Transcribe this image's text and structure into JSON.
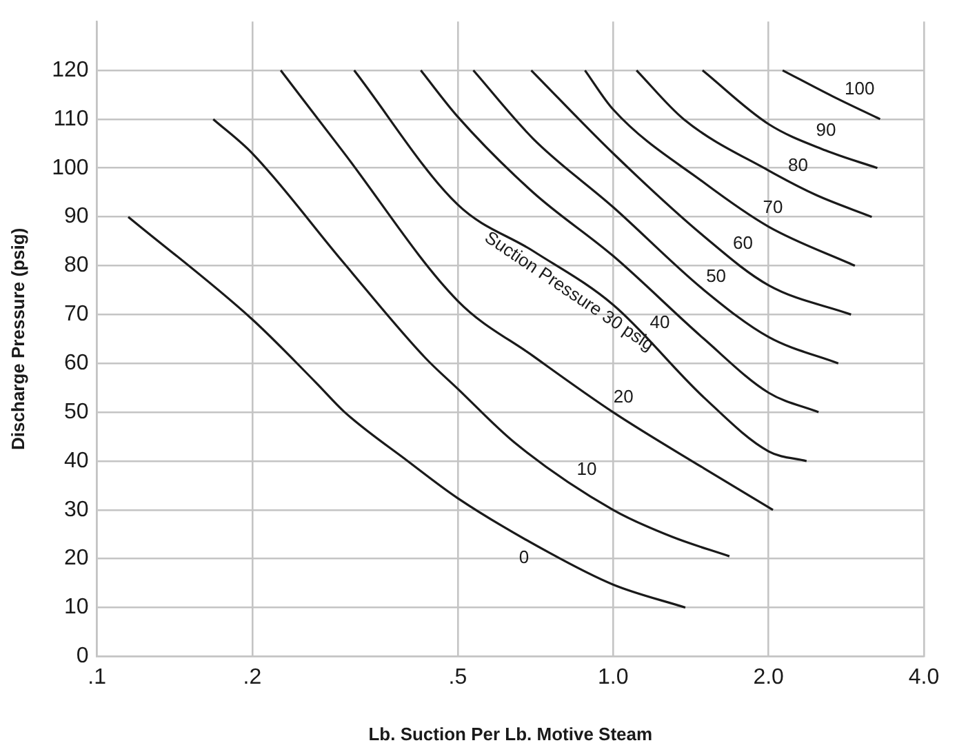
{
  "chart_data": {
    "type": "line",
    "xlabel": "Lb. Suction Per Lb. Motive Steam",
    "ylabel": "Discharge Pressure (psig)",
    "log": "x",
    "xlim": [
      0.1,
      4
    ],
    "xticks": [
      {
        "value": 0.1,
        "label": ".1"
      },
      {
        "value": 0.2,
        "label": ".2"
      },
      {
        "value": 0.5,
        "label": ".5"
      },
      {
        "value": 1,
        "label": "1.0"
      },
      {
        "value": 2,
        "label": "2.0"
      },
      {
        "value": 4,
        "label": "4.0"
      }
    ],
    "ylim": [
      0,
      130
    ],
    "yticks": [
      0,
      10,
      20,
      30,
      40,
      50,
      60,
      70,
      80,
      90,
      100,
      110,
      120
    ],
    "grid": true,
    "legend": false,
    "marker": "none",
    "line_style": "solid",
    "series": [
      {
        "color": "#1a1a1a",
        "x": [
          0.115,
          0.2,
          0.266,
          0.302,
          0.4,
          0.5,
          0.75,
          1.0,
          1.38
        ],
        "values": [
          90,
          69,
          56,
          50,
          40,
          32.4,
          21.3,
          14.7,
          10
        ]
      },
      {
        "color": "#1a1a1a",
        "x": [
          0.168,
          0.2,
          0.3,
          0.432,
          0.5,
          0.644,
          1.0,
          1.3,
          1.68
        ],
        "values": [
          110,
          103,
          80.7,
          61.2,
          54.8,
          43.8,
          30,
          24.5,
          20.5
        ]
      },
      {
        "color": "#1a1a1a",
        "x": [
          0.227,
          0.3,
          0.5,
          0.7,
          1.0,
          1.5,
          2.04
        ],
        "values": [
          120,
          103.3,
          72.8,
          61.5,
          50,
          38.5,
          30
        ]
      },
      {
        "color": "#1a1a1a",
        "x": [
          0.315,
          0.5,
          0.7,
          1.0,
          1.5,
          2.0,
          2.37
        ],
        "values": [
          120,
          92.5,
          83,
          72,
          53,
          42,
          40
        ]
      },
      {
        "color": "#1a1a1a",
        "x": [
          0.424,
          0.5,
          0.7,
          1.0,
          1.5,
          2.0,
          2.5
        ],
        "values": [
          120,
          110.5,
          95,
          82,
          65,
          54,
          50
        ]
      },
      {
        "color": "#1a1a1a",
        "x": [
          0.536,
          0.7,
          1.0,
          1.5,
          2.0,
          2.73
        ],
        "values": [
          120,
          106,
          92,
          75,
          65.4,
          60
        ]
      },
      {
        "color": "#1a1a1a",
        "x": [
          0.694,
          1.0,
          1.5,
          2.0,
          2.89
        ],
        "values": [
          120,
          103,
          86,
          76,
          70
        ]
      },
      {
        "color": "#1a1a1a",
        "x": [
          0.882,
          1.0,
          1.5,
          2.0,
          2.94
        ],
        "values": [
          120,
          112,
          97,
          88,
          80
        ]
      },
      {
        "color": "#1a1a1a",
        "x": [
          1.11,
          1.37,
          2.0,
          2.47,
          3.17
        ],
        "values": [
          120,
          110,
          99.5,
          94.5,
          90
        ]
      },
      {
        "color": "#1a1a1a",
        "x": [
          1.49,
          2.0,
          2.58,
          3.25
        ],
        "values": [
          120,
          109,
          103.6,
          100
        ]
      },
      {
        "color": "#1a1a1a",
        "x": [
          2.13,
          2.66,
          3.29
        ],
        "values": [
          120,
          114.7,
          110
        ]
      }
    ],
    "annotations": [
      {
        "text": "0",
        "x": 0.7,
        "y": 23.2
      },
      {
        "text": "10",
        "x": 0.85,
        "y": 35.1
      },
      {
        "text": "20",
        "x": 1.0,
        "y": 50
      },
      {
        "text": "Suction Pressure 30 psig",
        "x": 0.85,
        "y": 77
      },
      {
        "text": "40",
        "x": 1.3,
        "y": 71
      },
      {
        "text": "50",
        "x": 1.5,
        "y": 75
      },
      {
        "text": "60",
        "x": 1.7,
        "y": 81.6
      },
      {
        "text": "70",
        "x": 1.95,
        "y": 88.8
      },
      {
        "text": "80",
        "x": 2.2,
        "y": 97.2
      },
      {
        "text": "90",
        "x": 2.5,
        "y": 104.3
      },
      {
        "text": "100",
        "x": 2.9,
        "y": 112.8
      }
    ]
  }
}
